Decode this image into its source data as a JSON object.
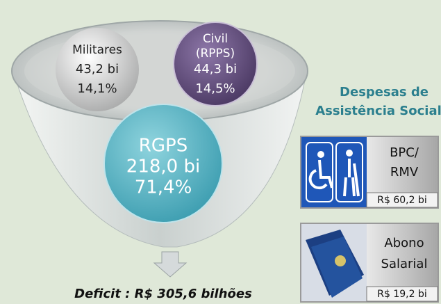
{
  "funnel": {
    "nodes": [
      {
        "lines": [
          "Militares",
          "43,2 bi",
          "14,1%"
        ]
      },
      {
        "lines": [
          "Civil",
          "(RPPS)",
          "44,3 bi",
          "14,5%"
        ]
      },
      {
        "lines": [
          "RGPS",
          "218,0 bi",
          "71,4%"
        ]
      }
    ],
    "result": "Deficit : R$ 305,6 bilhões"
  },
  "assistance": {
    "title": [
      "Despesas de",
      "Assistência Social"
    ],
    "items": [
      {
        "lines": [
          "BPC/",
          "RMV"
        ],
        "value": "R$ 60,2 bi"
      },
      {
        "lines": [
          "Abono",
          "Salarial"
        ],
        "value": "R$ 19,2 bi"
      }
    ]
  }
}
